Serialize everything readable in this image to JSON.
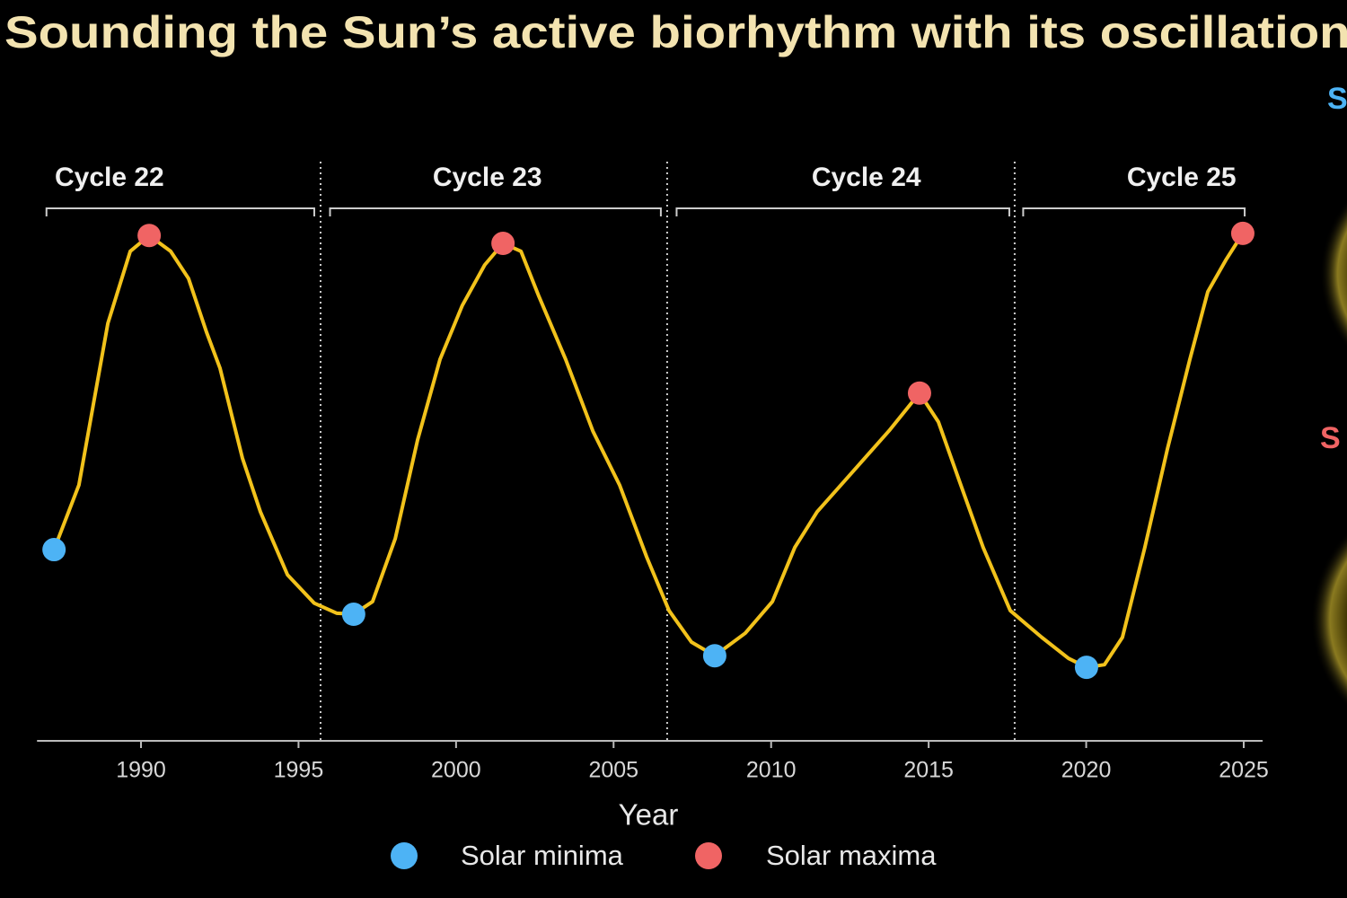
{
  "chart_data": {
    "type": "line",
    "title": "Sounding the Sun’s active biorhythm with its oscillations",
    "xlabel": "Year",
    "xlim": [
      1986.7,
      2025.6
    ],
    "ylim": [
      0,
      100
    ],
    "xticks": [
      1990,
      1995,
      2000,
      2005,
      2010,
      2015,
      2020,
      2025
    ],
    "cycles": [
      {
        "label": "Cycle 22",
        "start": 1987.0,
        "end": 1995.5
      },
      {
        "label": "Cycle 23",
        "start": 1996.0,
        "end": 2006.5
      },
      {
        "label": "Cycle 24",
        "start": 2007.0,
        "end": 2017.56
      },
      {
        "label": "Cycle 25",
        "start": 2018.0,
        "end": 2025.03
      }
    ],
    "cycle_boundaries": [
      1995.7,
      2006.7,
      2017.73
    ],
    "series": [
      {
        "color": "#f2c21b",
        "x": [
          1987.24,
          1988.03,
          1988.95,
          1989.66,
          1990.26,
          1990.94,
          1991.51,
          1992.08,
          1992.51,
          1993.22,
          1993.79,
          1994.65,
          1995.5,
          1996.21,
          1996.75,
          1997.35,
          1998.07,
          1998.78,
          1999.49,
          2000.2,
          2000.91,
          2001.49,
          2002.06,
          2002.63,
          2003.48,
          2004.34,
          2005.19,
          2006.05,
          2006.76,
          2007.47,
          2008.21,
          2009.18,
          2010.04,
          2010.75,
          2011.46,
          2012.6,
          2013.74,
          2014.71,
          2015.31,
          2016.02,
          2016.73,
          2017.59,
          2018.59,
          2019.44,
          2020.01,
          2020.58,
          2021.15,
          2021.86,
          2022.58,
          2023.29,
          2023.86,
          2024.43,
          2024.97
        ],
        "values": [
          36.4,
          48.7,
          79.5,
          93.2,
          96.2,
          93.2,
          88.0,
          77.8,
          70.9,
          53.8,
          43.6,
          31.6,
          26.2,
          24.3,
          24.1,
          26.5,
          38.5,
          57.3,
          72.6,
          82.9,
          90.6,
          94.7,
          93.2,
          84.6,
          72.6,
          59.0,
          48.7,
          35.0,
          24.8,
          18.8,
          16.2,
          20.5,
          26.5,
          36.8,
          43.6,
          51.3,
          59.0,
          66.2,
          60.7,
          48.7,
          36.8,
          24.8,
          19.7,
          15.7,
          14.0,
          14.5,
          19.7,
          36.8,
          55.6,
          72.6,
          85.5,
          91.5,
          96.6
        ]
      },
      {
        "name": "Solar minima",
        "color": "#4db3f5",
        "x": [
          1987.24,
          1996.75,
          2008.21,
          2020.01
        ],
        "values": [
          36.4,
          24.1,
          16.2,
          14.0
        ]
      },
      {
        "name": "Solar maxima",
        "color": "#f06464",
        "x": [
          1990.26,
          2001.49,
          2014.71,
          2024.97
        ],
        "values": [
          96.2,
          94.7,
          66.2,
          96.6
        ]
      }
    ],
    "side_labels": [
      {
        "text": "S",
        "color": "#4db3f5"
      },
      {
        "text": "S",
        "color": "#f06464"
      }
    ]
  }
}
